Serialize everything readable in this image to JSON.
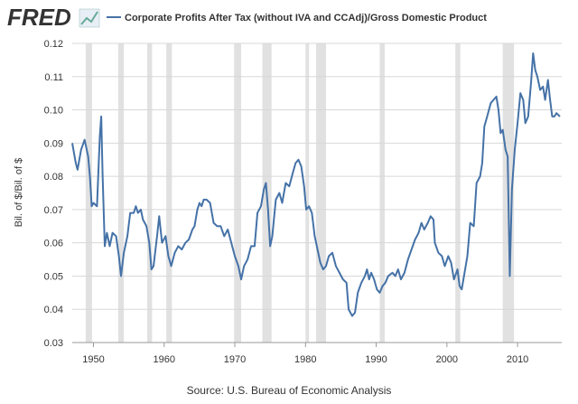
{
  "logo": "FRED",
  "chart_data": {
    "type": "line",
    "title": "Corporate Profits After Tax (without IVA and CCAdj)/Gross Domestic Product",
    "y_label": "Bil. of $/Bil. of $",
    "source": "Source: U.S. Bureau of Economic Analysis",
    "xlim": [
      1947,
      2016.25
    ],
    "xticks": [
      1950,
      1960,
      1970,
      1980,
      1990,
      2000,
      2010
    ],
    "ylim": [
      0.03,
      0.12
    ],
    "yticks": [
      0.03,
      0.04,
      0.05,
      0.06,
      0.07,
      0.08,
      0.09,
      {
        "value": 0.1,
        "label": "0.10"
      },
      0.11,
      0.12
    ],
    "grid": true,
    "shaded_periods": [
      [
        1948.9,
        1949.8
      ],
      [
        1953.5,
        1954.3
      ],
      [
        1957.6,
        1958.3
      ],
      [
        1960.3,
        1961.1
      ],
      [
        1969.9,
        1970.9
      ],
      [
        1973.9,
        1975.2
      ],
      [
        1980.0,
        1980.5
      ],
      [
        1981.5,
        1982.9
      ],
      [
        1990.5,
        1991.2
      ],
      [
        2001.2,
        2001.9
      ],
      [
        2007.9,
        2009.5
      ]
    ],
    "shade_color": "#e1e1e1",
    "x": [
      1947.0,
      1947.5,
      1947.75,
      1948.25,
      1948.75,
      1949.25,
      1949.5,
      1949.75,
      1950.0,
      1950.5,
      1950.9,
      1951.1,
      1951.3,
      1951.6,
      1951.9,
      1952.3,
      1952.7,
      1953.2,
      1953.6,
      1953.9,
      1954.3,
      1954.8,
      1955.2,
      1955.7,
      1956.0,
      1956.3,
      1956.7,
      1957.0,
      1957.5,
      1957.9,
      1958.2,
      1958.5,
      1959.0,
      1959.3,
      1959.7,
      1960.2,
      1960.6,
      1961.0,
      1961.5,
      1962.0,
      1962.5,
      1963.0,
      1963.5,
      1964.0,
      1964.3,
      1964.7,
      1965.0,
      1965.3,
      1965.6,
      1966.0,
      1966.5,
      1967.0,
      1967.5,
      1968.0,
      1968.5,
      1969.0,
      1969.5,
      1970.0,
      1970.5,
      1970.9,
      1971.3,
      1971.8,
      1972.3,
      1972.8,
      1973.2,
      1973.7,
      1974.1,
      1974.4,
      1974.7,
      1975.0,
      1975.3,
      1975.8,
      1976.3,
      1976.7,
      1977.2,
      1977.7,
      1978.2,
      1978.6,
      1979.0,
      1979.4,
      1979.8,
      1980.1,
      1980.5,
      1980.9,
      1981.3,
      1981.7,
      1982.1,
      1982.5,
      1982.9,
      1983.3,
      1983.8,
      1984.3,
      1984.8,
      1985.3,
      1985.8,
      1986.1,
      1986.6,
      1987.0,
      1987.4,
      1987.9,
      1988.4,
      1988.7,
      1989.0,
      1989.3,
      1989.7,
      1990.1,
      1990.5,
      1990.9,
      1991.3,
      1991.7,
      1992.3,
      1992.7,
      1993.1,
      1993.5,
      1994.0,
      1994.5,
      1995.0,
      1995.5,
      1996.0,
      1996.4,
      1996.8,
      1997.3,
      1997.7,
      1998.1,
      1998.3,
      1998.8,
      1999.3,
      1999.7,
      2000.2,
      2000.6,
      2001.0,
      2001.5,
      2001.8,
      2002.1,
      2002.5,
      2002.9,
      2003.3,
      2003.8,
      2004.2,
      2004.7,
      2005.0,
      2005.3,
      2005.7,
      2006.2,
      2006.6,
      2007.0,
      2007.3,
      2007.6,
      2007.9,
      2008.3,
      2008.6,
      2008.9,
      2009.2,
      2009.6,
      2010.0,
      2010.4,
      2010.8,
      2011.1,
      2011.5,
      2011.9,
      2012.2,
      2012.5,
      2012.8,
      2013.2,
      2013.6,
      2013.9,
      2014.3,
      2014.6,
      2014.9,
      2015.2,
      2015.5,
      2016.0
    ],
    "series": [
      {
        "name": "Corporate Profits After Tax (without IVA and CCAdj)/Gross Domestic Product",
        "color": "#4572a7",
        "values": [
          0.09,
          0.084,
          0.082,
          0.088,
          0.091,
          0.086,
          0.08,
          0.071,
          0.072,
          0.071,
          0.092,
          0.098,
          0.08,
          0.059,
          0.063,
          0.059,
          0.063,
          0.062,
          0.056,
          0.05,
          0.057,
          0.062,
          0.069,
          0.069,
          0.071,
          0.069,
          0.07,
          0.067,
          0.065,
          0.06,
          0.052,
          0.053,
          0.062,
          0.068,
          0.06,
          0.062,
          0.056,
          0.053,
          0.057,
          0.059,
          0.058,
          0.06,
          0.061,
          0.064,
          0.065,
          0.07,
          0.072,
          0.071,
          0.073,
          0.073,
          0.072,
          0.066,
          0.065,
          0.065,
          0.062,
          0.064,
          0.06,
          0.056,
          0.053,
          0.049,
          0.053,
          0.055,
          0.059,
          0.059,
          0.069,
          0.071,
          0.076,
          0.078,
          0.07,
          0.059,
          0.062,
          0.073,
          0.075,
          0.072,
          0.078,
          0.077,
          0.081,
          0.084,
          0.085,
          0.083,
          0.077,
          0.07,
          0.071,
          0.069,
          0.062,
          0.058,
          0.054,
          0.052,
          0.053,
          0.056,
          0.057,
          0.053,
          0.051,
          0.049,
          0.048,
          0.04,
          0.038,
          0.039,
          0.045,
          0.048,
          0.05,
          0.052,
          0.049,
          0.051,
          0.049,
          0.046,
          0.045,
          0.047,
          0.048,
          0.05,
          0.051,
          0.05,
          0.052,
          0.049,
          0.051,
          0.055,
          0.058,
          0.061,
          0.063,
          0.066,
          0.064,
          0.066,
          0.068,
          0.067,
          0.06,
          0.057,
          0.056,
          0.053,
          0.056,
          0.054,
          0.049,
          0.052,
          0.047,
          0.046,
          0.051,
          0.056,
          0.066,
          0.065,
          0.078,
          0.08,
          0.084,
          0.095,
          0.098,
          0.102,
          0.103,
          0.104,
          0.1,
          0.093,
          0.094,
          0.088,
          0.086,
          0.05,
          0.076,
          0.088,
          0.096,
          0.105,
          0.103,
          0.096,
          0.098,
          0.108,
          0.117,
          0.112,
          0.11,
          0.106,
          0.107,
          0.103,
          0.109,
          0.103,
          0.098,
          0.098,
          0.099,
          0.098
        ]
      }
    ]
  }
}
